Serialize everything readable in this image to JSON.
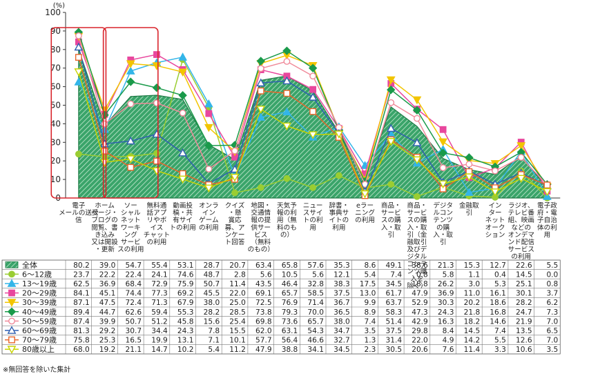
{
  "chart_data": {
    "type": "area+line",
    "unit_label": "(%)",
    "ylim": [
      0,
      100
    ],
    "yticks": [
      0,
      10,
      20,
      30,
      40,
      50,
      60,
      70,
      80,
      90,
      100
    ],
    "grid": false,
    "categories": [
      "電子メールの送受信",
      "ホームページ・ブログの閲覧、書き込み又は開設・更新",
      "ソーシャルネットワーキングサービスの利用",
      "無料通話アプリやボイスチャットの利用",
      "動画投稿・共有サイトの利用",
      "オンラインゲームの利用",
      "クイズ・懸賞応募、アンケート回答",
      "地図・交通情報の提供サービス（無料のもの）",
      "天気予報の利用（無料のもの）",
      "ニュースサイトの利用",
      "辞書・事典サイトの利用",
      "eラーニングの利用",
      "商品・サービスの購入・取引",
      "商品・サービスの購入・取引（金融取引及びデジタルコンテンツ購入を除く）",
      "デジタルコンテンツの購入・取引",
      "金融取引",
      "インターネットオークション",
      "ラジオ、テレビ番組、映画などのオンデマンド配信サービスの利用",
      "電子政府・電子自治体の利用"
    ],
    "category_lines": [
      [
        "電子",
        "メールの送受",
        "信"
      ],
      [
        "ホーム",
        "ページ・",
        "ブログの",
        "閲覧、書",
        "き込み",
        "又は開設",
        "・更新"
      ],
      [
        "ソー",
        "シャル",
        "ネット",
        "ワーキ",
        "ング",
        "サービ",
        "スの利用"
      ],
      [
        "無料通",
        "話アプ",
        "リやボ",
        "イス",
        "チャット",
        "の利用"
      ],
      [
        "動画投",
        "稿・共",
        "有サイ",
        "トの利用"
      ],
      [
        "オンラ",
        "イン",
        "ゲーム",
        "の利用"
      ],
      [
        "クイズ",
        "・懸",
        "賞応",
        "募、ア",
        "ンケー",
        "ト回答"
      ],
      [
        "地図・",
        "交通情",
        "報の提",
        "供サー",
        "ビス",
        "（無料",
        "のもの）"
      ],
      [
        "天気予",
        "報の利",
        "用（無",
        "料のも",
        "の）"
      ],
      [
        "ニュー",
        "スサイ",
        "トの利",
        "用"
      ],
      [
        "辞書・",
        "事典サ",
        "イトの",
        "利用"
      ],
      [
        "eラー",
        "ニング",
        "の利用"
      ],
      [
        "商品・",
        "サービ",
        "スの購",
        "入・取",
        "引"
      ],
      [
        "商品・",
        "サービ",
        "スの購",
        "入・取",
        "引（金",
        "融取引",
        "及びデ",
        "ジタル",
        "コンテ",
        "ンツ購",
        "入を",
        "除く）"
      ],
      [
        "デジタ",
        "ルコン",
        "テンツ",
        "の購",
        "入・取",
        "引"
      ],
      [
        "金融取",
        "引"
      ],
      [
        "イン",
        "ター",
        "ネット",
        "オーク",
        "ション"
      ],
      [
        "ラジオ、",
        "テレビ番",
        "組、映画",
        "などの",
        "オンデマ",
        "ンド配信",
        "サービス",
        "の利用"
      ],
      [
        "電子政",
        "府・電",
        "子自治",
        "体の利",
        "用"
      ]
    ],
    "area_series": {
      "name": "全体",
      "values": [
        80.2,
        39.0,
        54.7,
        55.4,
        53.1,
        28.7,
        20.7,
        63.4,
        65.8,
        57.6,
        35.3,
        8.6,
        49.1,
        38.6,
        21.3,
        15.3,
        12.7,
        22.6,
        5.5
      ],
      "fill": "#3aa46a",
      "stroke": "#1f7a45"
    },
    "series": [
      {
        "name": "6～12歳",
        "color": "#9acd32",
        "marker": "circle",
        "filled": true,
        "values": [
          23.7,
          22.2,
          22.4,
          24.1,
          74.6,
          48.7,
          2.8,
          5.6,
          10.5,
          5.6,
          12.1,
          5.4,
          7.4,
          0.8,
          5.8,
          1.1,
          0.4,
          14.5,
          0.0
        ],
        "display": [
          "23.7",
          "22.2",
          "22.4",
          "24.1",
          "74.6",
          "48.7",
          "2.8",
          "5.6",
          "10.5",
          "5.6",
          "12.1",
          "5.4",
          "7.4",
          "0.8",
          "5.8",
          "1.1",
          "0.4",
          "14.5",
          "0.0"
        ]
      },
      {
        "name": "13～19歳",
        "color": "#33b5e8",
        "marker": "triangle",
        "filled": true,
        "values": [
          62.5,
          36.9,
          68.4,
          72.9,
          75.9,
          50.7,
          11.4,
          43.5,
          46.4,
          32.8,
          38.3,
          17.5,
          34.5,
          18.8,
          26.2,
          3.0,
          5.3,
          25.1,
          0.8
        ],
        "display": [
          "62.5",
          "36.9",
          "68.4",
          "72.9",
          "75.9",
          "50.7",
          "11.4",
          "43.5",
          "46.4",
          "32.8",
          "38.3",
          "17.5",
          "34.5",
          "18.8",
          "26.2",
          "3.0",
          "5.3",
          "25.1",
          "0.8"
        ]
      },
      {
        "name": "20～29歳",
        "color": "#e8479d",
        "marker": "square",
        "filled": true,
        "values": [
          84.1,
          45.1,
          74.4,
          77.3,
          69.2,
          45.5,
          22.0,
          69.1,
          65.7,
          58.5,
          37.5,
          13.0,
          61.7,
          47.9,
          36.9,
          11.0,
          16.1,
          30.1,
          3.7
        ],
        "display": [
          "84.1",
          "45.1",
          "74.4",
          "77.3",
          "69.2",
          "45.5",
          "22.0",
          "69.1",
          "65.7",
          "58.5",
          "37.5",
          "13.0",
          "61.7",
          "47.9",
          "36.9",
          "11.0",
          "16.1",
          "30.1",
          "3.7"
        ]
      },
      {
        "name": "30～39歳",
        "color": "#f2c500",
        "marker": "triangle-down",
        "filled": true,
        "values": [
          87.1,
          47.5,
          72.4,
          71.3,
          67.9,
          38.0,
          25.0,
          72.5,
          76.9,
          71.4,
          36.7,
          9.9,
          63.7,
          52.9,
          30.3,
          20.2,
          18.6,
          28.2,
          6.2
        ],
        "display": [
          "87.1",
          "47.5",
          "72.4",
          "71.3",
          "67.9",
          "38.0",
          "25.0",
          "72.5",
          "76.9",
          "71.4",
          "36.7",
          "9.9",
          "63.7",
          "52.9",
          "30.3",
          "20.2",
          "18.6",
          "28.2",
          "6.2"
        ]
      },
      {
        "name": "40～49歳",
        "color": "#1a9a4a",
        "marker": "diamond",
        "filled": true,
        "values": [
          89.4,
          44.7,
          62.6,
          59.4,
          55.3,
          28.2,
          28.5,
          73.8,
          79.3,
          70.0,
          36.5,
          8.9,
          58.3,
          47.3,
          24.3,
          21.8,
          16.8,
          24.7,
          7.3
        ],
        "display": [
          "89.4",
          "44.7",
          "62.6",
          "59.4",
          "55.3",
          "28.2",
          "28.5",
          "73.8",
          "79.3",
          "70.0",
          "36.5",
          "8.9",
          "58.3",
          "47.3",
          "24.3",
          "21.8",
          "16.8",
          "24.7",
          "7.3"
        ]
      },
      {
        "name": "50～59歳",
        "color": "#f08a9a",
        "marker": "circle",
        "filled": false,
        "values": [
          87.4,
          39.9,
          50.7,
          51.2,
          45.8,
          15.6,
          25.4,
          69.8,
          73.6,
          65.7,
          38.0,
          7.4,
          51.4,
          42.9,
          16.3,
          18.2,
          14.6,
          21.9,
          7.0
        ],
        "display": [
          "87.4",
          "39.9",
          "50.7",
          "51.2",
          "45.8",
          "15.6",
          "25.4",
          "69.8",
          "73.6",
          "65.7",
          "38.0",
          "7.4",
          "51.4",
          "42.9",
          "16.3",
          "18.2",
          "14.6",
          "21.9",
          "7.0"
        ]
      },
      {
        "name": "60～69歳",
        "color": "#2f5fb0",
        "marker": "triangle",
        "filled": false,
        "values": [
          81.3,
          29.2,
          30.7,
          34.4,
          24.3,
          7.8,
          15.5,
          62.0,
          63.1,
          54.3,
          34.7,
          3.5,
          37.5,
          29.8,
          8.4,
          14.5,
          7.4,
          13.5,
          6.5
        ],
        "display": [
          "81.3",
          "29.2",
          "30.7",
          "34.4",
          "24.3",
          "7.8",
          "15.5",
          "62.0",
          "63.1",
          "54.3",
          "34.7",
          "3.5",
          "37.5",
          "29.8",
          "8.4",
          "14.5",
          "7.4",
          "13.5",
          "6.5"
        ]
      },
      {
        "name": "70～79歳",
        "color": "#e8652a",
        "marker": "square",
        "filled": false,
        "values": [
          75.8,
          25.3,
          16.5,
          19.9,
          13.1,
          7.1,
          10.1,
          57.7,
          56.4,
          46.6,
          32.7,
          1.3,
          31.4,
          22.0,
          4.9,
          14.2,
          5.5,
          12.6,
          7.0
        ],
        "display": [
          "75.8",
          "25.3",
          "16.5",
          "19.9",
          "13.1",
          "7.1",
          "10.1",
          "57.7",
          "56.4",
          "46.6",
          "32.7",
          "1.3",
          "31.4",
          "22.0",
          "4.9",
          "14.2",
          "5.5",
          "12.6",
          "7.0"
        ]
      },
      {
        "name": "80歳以上",
        "color": "#c8d400",
        "marker": "triangle-down",
        "filled": false,
        "values": [
          68.0,
          19.2,
          21.1,
          14.7,
          10.2,
          5.4,
          11.2,
          47.9,
          38.8,
          34.1,
          34.5,
          2.3,
          30.5,
          20.6,
          7.6,
          11.4,
          3.3,
          10.6,
          3.5
        ],
        "display": [
          "68.0",
          "19.2",
          "21.1",
          "14.7",
          "10.2",
          "5.4",
          "11.2",
          "47.9",
          "38.8",
          "34.1",
          "34.5",
          "2.3",
          "30.5",
          "20.6",
          "7.6",
          "11.4",
          "3.3",
          "10.6",
          "3.5"
        ]
      }
    ],
    "area_display": [
      "80.2",
      "39.0",
      "54.7",
      "55.4",
      "53.1",
      "28.7",
      "20.7",
      "63.4",
      "65.8",
      "57.6",
      "35.3",
      "8.6",
      "49.1",
      "38.6",
      "21.3",
      "15.3",
      "12.7",
      "22.6",
      "5.5"
    ],
    "highlighted_categories": [
      0,
      2
    ],
    "highlight_color": "#d9242b",
    "legend_placement": "table-left"
  },
  "footnote": "※無回答を除いた集計"
}
